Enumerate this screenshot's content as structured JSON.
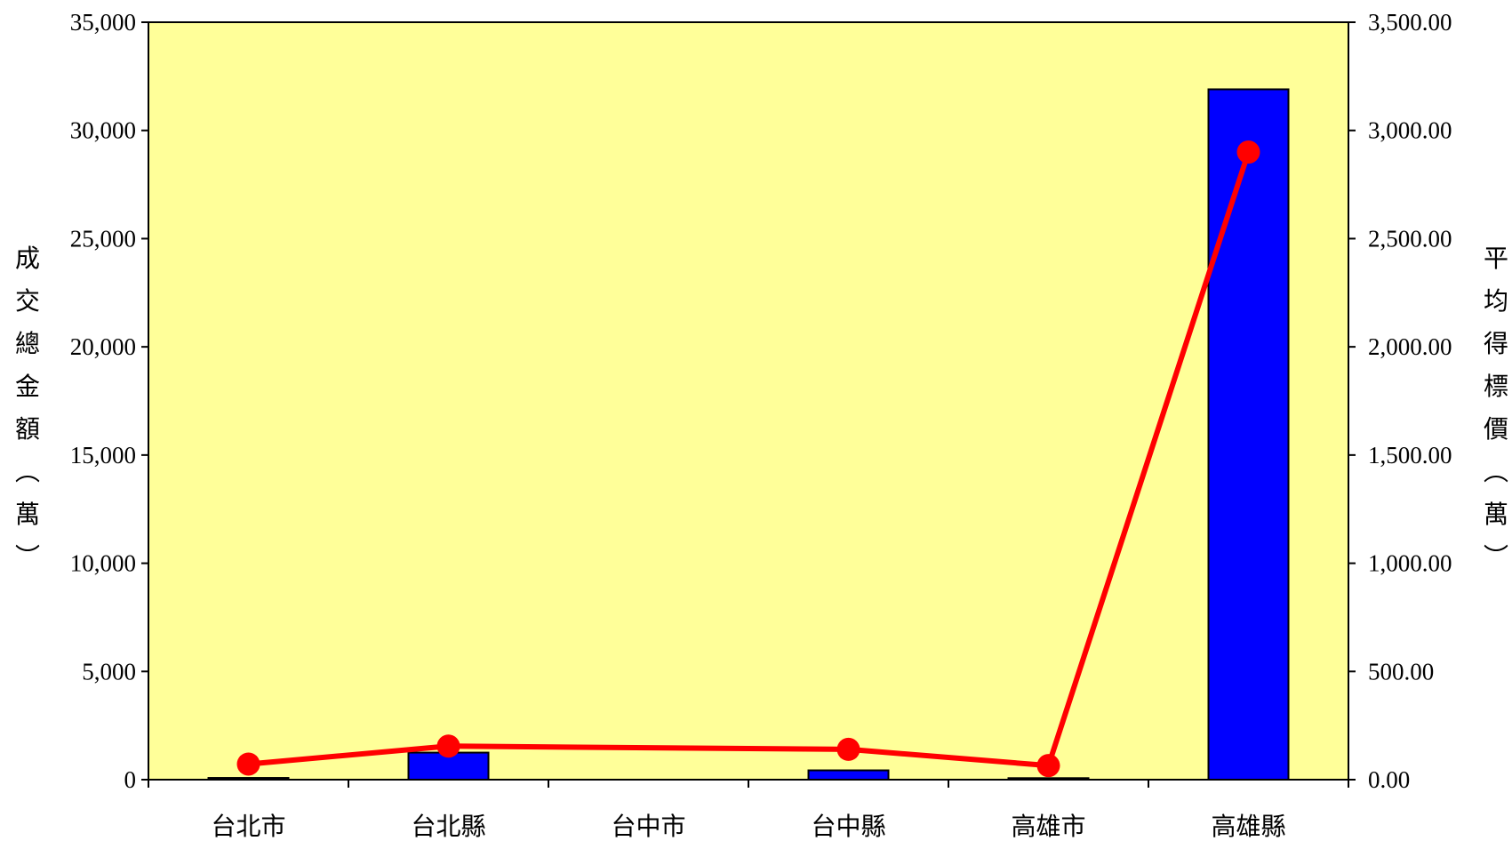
{
  "chart_data": {
    "type": "bar",
    "categories": [
      "台北市",
      "台北縣",
      "台中市",
      "台中縣",
      "高雄市",
      "高雄縣"
    ],
    "series": [
      {
        "type": "bar",
        "axis": "left",
        "color": "#0000ff",
        "values": [
          80,
          1250,
          0,
          430,
          70,
          31900
        ]
      },
      {
        "type": "line",
        "axis": "right",
        "color": "#ff0000",
        "values": [
          72,
          155,
          null,
          140,
          65,
          2900
        ]
      }
    ],
    "ylabel": "成交總金額（萬）",
    "y2label": "平均得標價（萬）",
    "ylim": [
      0,
      35000
    ],
    "y2lim": [
      0,
      3500
    ],
    "yticks": [
      "0",
      "5,000",
      "10,000",
      "15,000",
      "20,000",
      "25,000",
      "30,000",
      "35,000"
    ],
    "y2ticks": [
      "0.00",
      "500.00",
      "1,000.00",
      "1,500.00",
      "2,000.00",
      "2,500.00",
      "3,000.00",
      "3,500.00"
    ],
    "plot_background": "#ffff99",
    "grid": false,
    "legend": "none"
  }
}
